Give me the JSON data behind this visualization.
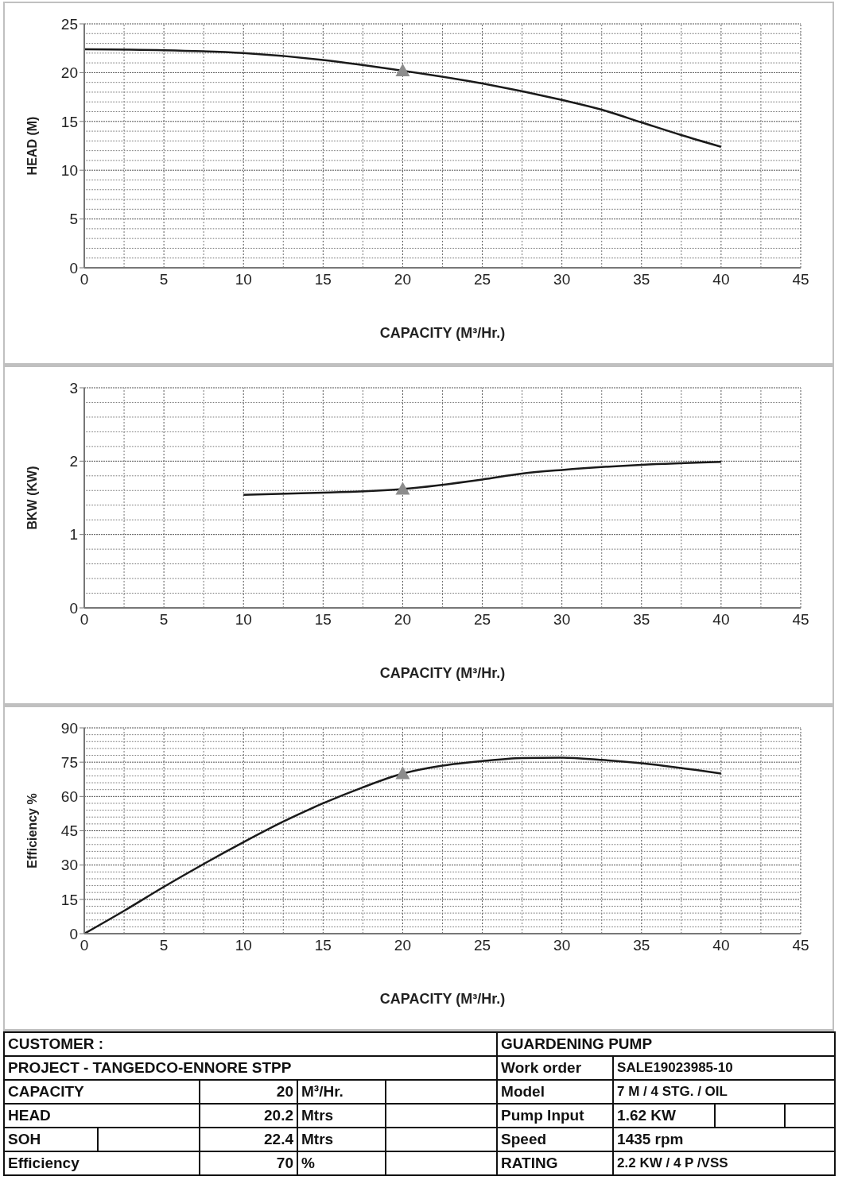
{
  "chart_data": [
    {
      "type": "line",
      "xlabel": "CAPACITY (M³/Hr.)",
      "ylabel": "HEAD (M)",
      "xlim": [
        0,
        45
      ],
      "xticks": [
        0,
        5,
        10,
        15,
        20,
        25,
        30,
        35,
        40,
        45
      ],
      "ylim": [
        0,
        25
      ],
      "yticks": [
        0,
        5,
        10,
        15,
        20,
        25
      ],
      "grid": true,
      "marker": "none",
      "series": [
        {
          "color": "#1a1a1a",
          "x": [
            0,
            5,
            10,
            15,
            20,
            25,
            30,
            32.5,
            35,
            37.5,
            40
          ],
          "values": [
            22.4,
            22.3,
            22.0,
            21.3,
            20.2,
            18.9,
            17.2,
            16.2,
            14.9,
            13.6,
            12.4
          ]
        },
        {
          "type": "scatter",
          "marker": "triangle",
          "color": "#8c8c8c",
          "x": [
            20
          ],
          "values": [
            20.2
          ]
        }
      ]
    },
    {
      "type": "line",
      "xlabel": "CAPACITY (M³/Hr.)",
      "ylabel": "BKW (KW)",
      "xlim": [
        0,
        45
      ],
      "xticks": [
        0,
        5,
        10,
        15,
        20,
        25,
        30,
        35,
        40,
        45
      ],
      "ylim": [
        0,
        3
      ],
      "yticks": [
        0,
        1,
        2,
        3
      ],
      "grid": true,
      "marker": "none",
      "series": [
        {
          "color": "#1a1a1a",
          "x": [
            10,
            15,
            20,
            25,
            27.5,
            30,
            35,
            40
          ],
          "values": [
            1.54,
            1.57,
            1.62,
            1.75,
            1.83,
            1.88,
            1.95,
            1.99
          ]
        },
        {
          "type": "scatter",
          "marker": "triangle",
          "color": "#8c8c8c",
          "x": [
            20
          ],
          "values": [
            1.62
          ]
        }
      ]
    },
    {
      "type": "line",
      "xlabel": "CAPACITY (M³/Hr.)",
      "ylabel": "Efficiency %",
      "xlim": [
        0,
        45
      ],
      "xticks": [
        0,
        5,
        10,
        15,
        20,
        25,
        30,
        35,
        40,
        45
      ],
      "ylim": [
        0,
        90
      ],
      "yticks": [
        0,
        15,
        30,
        45,
        60,
        75,
        90
      ],
      "grid": true,
      "marker": "none",
      "series": [
        {
          "color": "#1a1a1a",
          "x": [
            0,
            2.5,
            5,
            7.5,
            10,
            12.5,
            15,
            17.5,
            20,
            22.5,
            25,
            27.5,
            30,
            32.5,
            35,
            40
          ],
          "values": [
            0,
            10,
            20.5,
            30.5,
            40,
            49,
            57,
            64,
            70,
            73.5,
            75.5,
            76.8,
            77,
            76,
            74.5,
            70
          ]
        },
        {
          "type": "scatter",
          "marker": "triangle",
          "color": "#8c8c8c",
          "x": [
            20
          ],
          "values": [
            70
          ]
        }
      ]
    },
    {
      "type": "other",
      "annotations": [
        "CUSTOMER :",
        "GUARDENING PUMP",
        "PROJECT - TANGEDCO-ENNORE STPP",
        "Work order",
        "SALE19023985-10",
        "CAPACITY",
        "20",
        "M³/Hr.",
        "Model",
        "7 M / 4 STG. / OIL",
        "HEAD",
        "20.2",
        "Mtrs",
        "Pump Input",
        "1.62 KW",
        "SOH",
        "22.4",
        "Mtrs",
        "Speed",
        "1435 rpm",
        "Efficiency",
        "70",
        "%",
        "RATING",
        "2.2 KW / 4 P /VSS"
      ]
    }
  ]
}
